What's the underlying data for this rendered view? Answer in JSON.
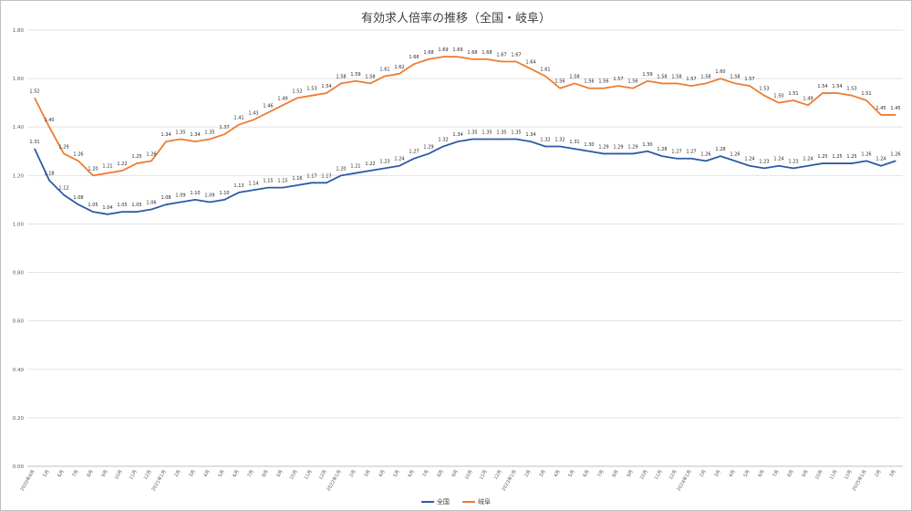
{
  "chart_data": {
    "type": "line",
    "title": "有効求人倍率の推移（全国・岐阜）",
    "xlabel": "",
    "ylabel": "",
    "ylim": [
      0,
      1.8
    ],
    "ytick_step": 0.2,
    "grid": true,
    "legend_position": "bottom",
    "categories": [
      "2020年4月",
      "5月",
      "6月",
      "7月",
      "8月",
      "9月",
      "10月",
      "11月",
      "12月",
      "2021年1月",
      "2月",
      "3月",
      "4月",
      "5月",
      "6月",
      "7月",
      "8月",
      "9月",
      "10月",
      "11月",
      "12月",
      "2022年1月",
      "2月",
      "3月",
      "4月",
      "5月",
      "6月",
      "7月",
      "8月",
      "9月",
      "10月",
      "11月",
      "12月",
      "2023年1月",
      "2月",
      "3月",
      "4月",
      "5月",
      "6月",
      "7月",
      "8月",
      "9月",
      "10月",
      "11月",
      "12月",
      "2024年1月",
      "2月",
      "3月",
      "4月",
      "5月",
      "6月",
      "7月",
      "8月",
      "9月",
      "10月",
      "11月",
      "12月",
      "2025年1月",
      "2月",
      "3月"
    ],
    "series": [
      {
        "name": "全国",
        "color": "#2e5aa8",
        "values": [
          1.31,
          1.18,
          1.12,
          1.08,
          1.05,
          1.04,
          1.05,
          1.05,
          1.06,
          1.08,
          1.09,
          1.1,
          1.09,
          1.1,
          1.13,
          1.14,
          1.15,
          1.15,
          1.16,
          1.17,
          1.17,
          1.2,
          1.21,
          1.22,
          1.23,
          1.24,
          1.27,
          1.29,
          1.32,
          1.34,
          1.35,
          1.35,
          1.35,
          1.35,
          1.34,
          1.32,
          1.32,
          1.31,
          1.3,
          1.29,
          1.29,
          1.29,
          1.3,
          1.28,
          1.27,
          1.27,
          1.26,
          1.28,
          1.26,
          1.24,
          1.23,
          1.24,
          1.23,
          1.24,
          1.25,
          1.25,
          1.25,
          1.26,
          1.24,
          1.26
        ]
      },
      {
        "name": "岐阜",
        "color": "#ed7d31",
        "values": [
          1.52,
          1.4,
          1.29,
          1.26,
          1.2,
          1.21,
          1.22,
          1.25,
          1.26,
          1.34,
          1.35,
          1.34,
          1.35,
          1.37,
          1.41,
          1.43,
          1.46,
          1.49,
          1.52,
          1.53,
          1.54,
          1.58,
          1.59,
          1.58,
          1.61,
          1.62,
          1.66,
          1.68,
          1.69,
          1.69,
          1.68,
          1.68,
          1.67,
          1.67,
          1.64,
          1.61,
          1.56,
          1.58,
          1.56,
          1.56,
          1.57,
          1.56,
          1.59,
          1.58,
          1.58,
          1.57,
          1.58,
          1.6,
          1.58,
          1.57,
          1.53,
          1.5,
          1.51,
          1.49,
          1.54,
          1.54,
          1.53,
          1.51,
          1.45,
          1.45
        ]
      }
    ]
  }
}
